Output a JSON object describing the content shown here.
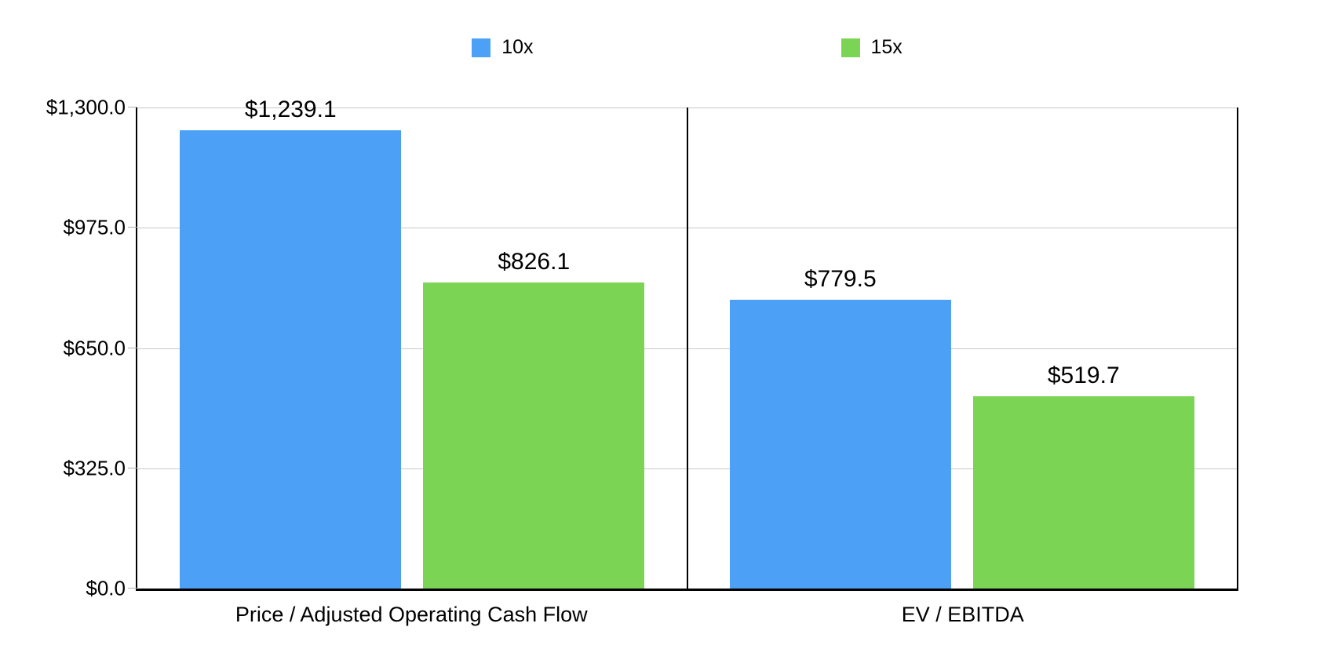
{
  "chart_data": {
    "type": "bar",
    "title": "",
    "categories": [
      "Price / Adjusted Operating Cash Flow",
      "EV / EBITDA"
    ],
    "series": [
      {
        "name": "10x",
        "color": "#4CA0F6",
        "values": [
          1239.1,
          779.5
        ],
        "labels": [
          "$1,239.1",
          "$779.5"
        ]
      },
      {
        "name": "15x",
        "color": "#7CD455",
        "values": [
          826.1,
          519.7
        ],
        "labels": [
          "$826.1",
          "$519.7"
        ]
      }
    ],
    "xlabel": "",
    "ylabel": "",
    "ylim": [
      0,
      1300
    ],
    "yticks": [
      0,
      325,
      650,
      975,
      1300
    ],
    "ytick_labels": [
      "$0.0",
      "$325.0",
      "$650.0",
      "$975.0",
      "$1,300.0"
    ],
    "grid": true,
    "legend_position": "top",
    "colors": {
      "axis": "#000000",
      "gridline": "#C9C9C9",
      "tick": "#AFAFAF",
      "text": "#000000",
      "background": "#FFFFFF"
    }
  }
}
